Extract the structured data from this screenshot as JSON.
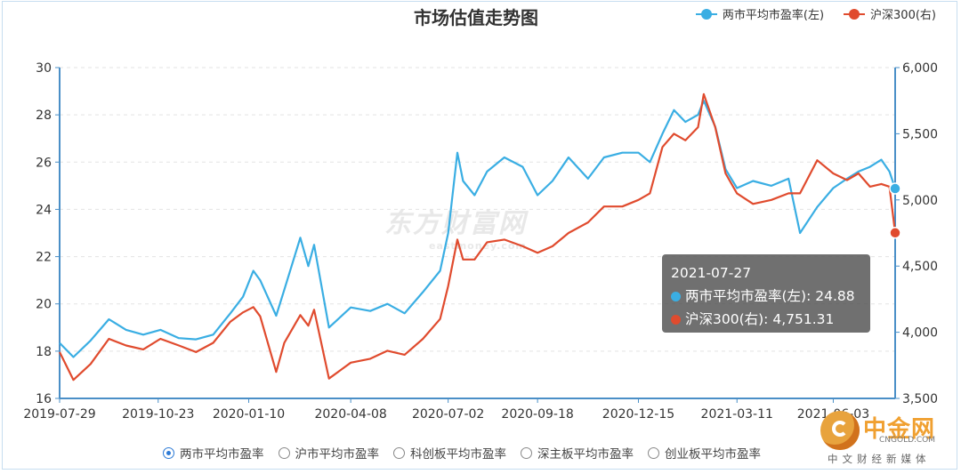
{
  "chart_data": {
    "type": "line",
    "title": "市场估值走势图",
    "x_ticks": [
      "2019-07-29",
      "2019-10-23",
      "2020-01-10",
      "2020-04-08",
      "2020-07-02",
      "2020-09-18",
      "2020-12-15",
      "2021-03-11",
      "2021-06-03"
    ],
    "x_range": [
      "2019-07-29",
      "2021-07-27"
    ],
    "y_left": {
      "min": 16,
      "max": 30,
      "ticks": [
        "16",
        "18",
        "20",
        "22",
        "24",
        "26",
        "28",
        "30"
      ]
    },
    "y_right": {
      "min": 3500,
      "max": 6000,
      "ticks": [
        "3,500",
        "4,000",
        "4,500",
        "5,000",
        "5,500",
        "6,000"
      ]
    },
    "grid": "horizontal dashed",
    "legend_position": "top-right",
    "series": [
      {
        "name": "两市平均市盈率(左)",
        "axis": "left",
        "color": "#3aaee3",
        "points": [
          [
            "2019-07-29",
            18.35
          ],
          [
            "2019-08-10",
            17.75
          ],
          [
            "2019-08-25",
            18.45
          ],
          [
            "2019-09-10",
            19.35
          ],
          [
            "2019-09-25",
            18.9
          ],
          [
            "2019-10-10",
            18.7
          ],
          [
            "2019-10-25",
            18.9
          ],
          [
            "2019-11-10",
            18.55
          ],
          [
            "2019-11-25",
            18.5
          ],
          [
            "2019-12-10",
            18.7
          ],
          [
            "2019-12-25",
            19.6
          ],
          [
            "2020-01-05",
            20.3
          ],
          [
            "2020-01-14",
            21.4
          ],
          [
            "2020-01-20",
            21.0
          ],
          [
            "2020-02-03",
            19.5
          ],
          [
            "2020-02-10",
            20.6
          ],
          [
            "2020-02-24",
            22.8
          ],
          [
            "2020-03-02",
            21.6
          ],
          [
            "2020-03-07",
            22.5
          ],
          [
            "2020-03-20",
            19.0
          ],
          [
            "2020-04-08",
            19.85
          ],
          [
            "2020-04-25",
            19.7
          ],
          [
            "2020-05-10",
            20.0
          ],
          [
            "2020-05-25",
            19.6
          ],
          [
            "2020-06-10",
            20.5
          ],
          [
            "2020-06-25",
            21.4
          ],
          [
            "2020-07-02",
            23.0
          ],
          [
            "2020-07-10",
            26.4
          ],
          [
            "2020-07-15",
            25.2
          ],
          [
            "2020-07-25",
            24.6
          ],
          [
            "2020-08-05",
            25.6
          ],
          [
            "2020-08-20",
            26.2
          ],
          [
            "2020-09-05",
            25.8
          ],
          [
            "2020-09-18",
            24.6
          ],
          [
            "2020-10-01",
            25.2
          ],
          [
            "2020-10-15",
            26.2
          ],
          [
            "2020-11-01",
            25.3
          ],
          [
            "2020-11-15",
            26.2
          ],
          [
            "2020-12-01",
            26.4
          ],
          [
            "2020-12-15",
            26.4
          ],
          [
            "2020-12-25",
            26.0
          ],
          [
            "2021-01-05",
            27.2
          ],
          [
            "2021-01-15",
            28.2
          ],
          [
            "2021-01-25",
            27.7
          ],
          [
            "2021-02-05",
            28.0
          ],
          [
            "2021-02-10",
            28.6
          ],
          [
            "2021-02-20",
            27.5
          ],
          [
            "2021-03-01",
            25.7
          ],
          [
            "2021-03-11",
            24.9
          ],
          [
            "2021-03-25",
            25.2
          ],
          [
            "2021-04-10",
            25.0
          ],
          [
            "2021-04-25",
            25.3
          ],
          [
            "2021-05-05",
            23.0
          ],
          [
            "2021-05-20",
            24.1
          ],
          [
            "2021-06-03",
            24.9
          ],
          [
            "2021-06-15",
            25.3
          ],
          [
            "2021-06-25",
            25.6
          ],
          [
            "2021-07-05",
            25.8
          ],
          [
            "2021-07-15",
            26.1
          ],
          [
            "2021-07-22",
            25.6
          ],
          [
            "2021-07-27",
            24.88
          ]
        ]
      },
      {
        "name": "沪深300(右)",
        "axis": "right",
        "color": "#e04b2e",
        "points": [
          [
            "2019-07-29",
            3850
          ],
          [
            "2019-08-10",
            3640
          ],
          [
            "2019-08-25",
            3760
          ],
          [
            "2019-09-10",
            3950
          ],
          [
            "2019-09-25",
            3900
          ],
          [
            "2019-10-10",
            3870
          ],
          [
            "2019-10-25",
            3950
          ],
          [
            "2019-11-10",
            3900
          ],
          [
            "2019-11-25",
            3850
          ],
          [
            "2019-12-10",
            3920
          ],
          [
            "2019-12-25",
            4080
          ],
          [
            "2020-01-05",
            4150
          ],
          [
            "2020-01-14",
            4190
          ],
          [
            "2020-01-20",
            4120
          ],
          [
            "2020-02-03",
            3700
          ],
          [
            "2020-02-10",
            3920
          ],
          [
            "2020-02-24",
            4130
          ],
          [
            "2020-03-02",
            4050
          ],
          [
            "2020-03-07",
            4170
          ],
          [
            "2020-03-20",
            3650
          ],
          [
            "2020-04-08",
            3770
          ],
          [
            "2020-04-25",
            3800
          ],
          [
            "2020-05-10",
            3860
          ],
          [
            "2020-05-25",
            3830
          ],
          [
            "2020-06-10",
            3950
          ],
          [
            "2020-06-25",
            4100
          ],
          [
            "2020-07-02",
            4350
          ],
          [
            "2020-07-10",
            4700
          ],
          [
            "2020-07-15",
            4550
          ],
          [
            "2020-07-25",
            4550
          ],
          [
            "2020-08-05",
            4680
          ],
          [
            "2020-08-20",
            4700
          ],
          [
            "2020-09-05",
            4650
          ],
          [
            "2020-09-18",
            4600
          ],
          [
            "2020-10-01",
            4650
          ],
          [
            "2020-10-15",
            4750
          ],
          [
            "2020-11-01",
            4830
          ],
          [
            "2020-11-15",
            4950
          ],
          [
            "2020-12-01",
            4950
          ],
          [
            "2020-12-15",
            5000
          ],
          [
            "2020-12-25",
            5050
          ],
          [
            "2021-01-05",
            5400
          ],
          [
            "2021-01-15",
            5500
          ],
          [
            "2021-01-25",
            5450
          ],
          [
            "2021-02-05",
            5550
          ],
          [
            "2021-02-10",
            5800
          ],
          [
            "2021-02-20",
            5550
          ],
          [
            "2021-03-01",
            5200
          ],
          [
            "2021-03-11",
            5050
          ],
          [
            "2021-03-25",
            4970
          ],
          [
            "2021-04-10",
            5000
          ],
          [
            "2021-04-25",
            5050
          ],
          [
            "2021-05-05",
            5050
          ],
          [
            "2021-05-20",
            5300
          ],
          [
            "2021-06-03",
            5200
          ],
          [
            "2021-06-15",
            5150
          ],
          [
            "2021-06-25",
            5200
          ],
          [
            "2021-07-05",
            5100
          ],
          [
            "2021-07-15",
            5120
          ],
          [
            "2021-07-22",
            5100
          ],
          [
            "2021-07-27",
            4751.31
          ]
        ]
      }
    ]
  },
  "tooltip": {
    "date": "2021-07-27",
    "rows": [
      {
        "text": "两市平均市盈率(左): 24.88",
        "color": "#3aaee3"
      },
      {
        "text": "沪深300(右): 4,751.31",
        "color": "#e04b2e"
      }
    ]
  },
  "radio_options": [
    {
      "label": "两市平均市盈率",
      "selected": true
    },
    {
      "label": "沪市平均市盈率",
      "selected": false
    },
    {
      "label": "科创板平均市盈率",
      "selected": false
    },
    {
      "label": "深主板平均市盈率",
      "selected": false
    },
    {
      "label": "创业板平均市盈率",
      "selected": false
    }
  ],
  "watermark": {
    "main": "东方财富网",
    "sub": "eastmoney.com"
  },
  "logo": {
    "brand": "中金网",
    "domain": "CNGOLD.COM",
    "slogan": "中文财经新媒体"
  }
}
